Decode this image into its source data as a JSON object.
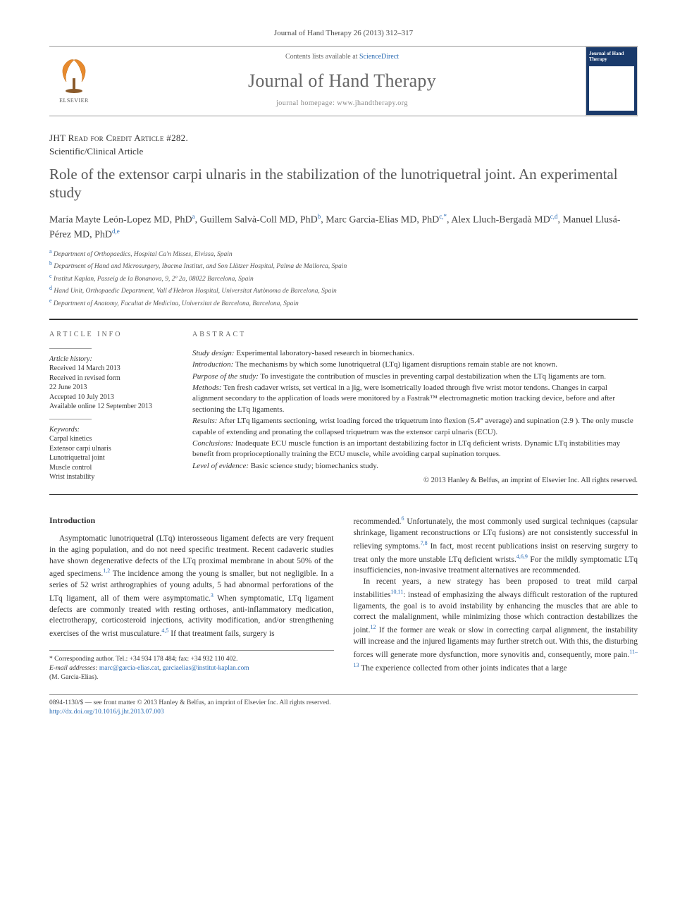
{
  "ref_citation": "Journal of Hand Therapy 26 (2013) 312–317",
  "header": {
    "publisher": "ELSEVIER",
    "contents_prefix": "Contents lists available at ",
    "contents_link": "ScienceDirect",
    "journal_name": "Journal of Hand Therapy",
    "homepage_prefix": "journal homepage: ",
    "homepage_url": "www.jhandtherapy.org",
    "cover_title": "Journal of Hand Therapy"
  },
  "article_type": "JHT Read for Credit Article #282.",
  "article_category": "Scientific/Clinical Article",
  "title": "Role of the extensor carpi ulnaris in the stabilization of the lunotriquetral joint. An experimental study",
  "authors_html": "María Mayte León-Lopez MD, PhD<sup>a</sup>, Guillem Salvà-Coll MD, PhD<sup>b</sup>, Marc Garcia-Elias MD, PhD<sup>c,*</sup>, Alex Lluch-Bergadà MD<sup>c,d</sup>, Manuel Llusá-Pérez MD, PhD<sup>d,e</sup>",
  "affiliations": [
    {
      "sup": "a",
      "text": "Department of Orthopaedics, Hospital Ca'n Misses, Eivissa, Spain"
    },
    {
      "sup": "b",
      "text": "Department of Hand and Microsurgery, Ibacma Institut, and Son Llàtzer Hospital, Palma de Mallorca, Spain"
    },
    {
      "sup": "c",
      "text": "Institut Kaplan, Passeig de la Bonanova, 9, 2º 2a, 08022 Barcelona, Spain"
    },
    {
      "sup": "d",
      "text": "Hand Unit, Orthopaedic Department, Vall d'Hebron Hospital, Universitat Autònoma de Barcelona, Spain"
    },
    {
      "sup": "e",
      "text": "Department of Anatomy, Facultat de Medicina, Universitat de Barcelona, Barcelona, Spain"
    }
  ],
  "info": {
    "heading": "ARTICLE INFO",
    "history_label": "Article history:",
    "history": [
      "Received 14 March 2013",
      "Received in revised form",
      "22 June 2013",
      "Accepted 10 July 2013",
      "Available online 12 September 2013"
    ],
    "keywords_label": "Keywords:",
    "keywords": [
      "Carpal kinetics",
      "Extensor carpi ulnaris",
      "Lunotriquetral joint",
      "Muscle control",
      "Wrist instability"
    ]
  },
  "abstract": {
    "heading": "ABSTRACT",
    "items": [
      {
        "label": "Study design:",
        "text": " Experimental laboratory-based research in biomechanics."
      },
      {
        "label": "Introduction:",
        "text": " The mechanisms by which some lunotriquetral (LTq) ligament disruptions remain stable are not known."
      },
      {
        "label": "Purpose of the study:",
        "text": " To investigate the contribution of muscles in preventing carpal destabilization when the LTq ligaments are torn."
      },
      {
        "label": "Methods:",
        "text": " Ten fresh cadaver wrists, set vertical in a jig, were isometrically loaded through five wrist motor tendons. Changes in carpal alignment secondary to the application of loads were monitored by a Fastrak™ electromagnetic motion tracking device, before and after sectioning the LTq ligaments."
      },
      {
        "label": "Results:",
        "text": " After LTq ligaments sectioning, wrist loading forced the triquetrum into flexion (5.4° average) and supination (2.9 ). The only muscle capable of extending and pronating the collapsed triquetrum was the extensor carpi ulnaris (ECU)."
      },
      {
        "label": "Conclusions:",
        "text": " Inadequate ECU muscle function is an important destabilizing factor in LTq deficient wrists. Dynamic LTq instabilities may benefit from proprioceptionally training the ECU muscle, while avoiding carpal supination torques."
      },
      {
        "label": "Level of evidence:",
        "text": " Basic science study; biomechanics study."
      }
    ],
    "copyright": "© 2013 Hanley & Belfus, an imprint of Elsevier Inc. All rights reserved."
  },
  "body": {
    "intro_heading": "Introduction",
    "p1": "Asymptomatic lunotriquetral (LTq) interosseous ligament defects are very frequent in the aging population, and do not need specific treatment. Recent cadaveric studies have shown degenerative defects of the LTq proximal membrane in about 50% of the aged specimens.<sup>1,2</sup> The incidence among the young is smaller, but not negligible. In a series of 52 wrist arthrographies of young adults, 5 had abnormal perforations of the LTq ligament, all of them were asymptomatic.<sup>3</sup> When symptomatic, LTq ligament defects are commonly treated with resting orthoses, anti-inflammatory medication, electrotherapy, corticosteroid injections, activity modification, and/or strengthening exercises of the wrist musculature.<sup>4,5</sup> If that treatment fails, surgery is",
    "p2": "recommended.<sup>6</sup> Unfortunately, the most commonly used surgical techniques (capsular shrinkage, ligament reconstructions or LTq fusions) are not consistently successful in relieving symptoms.<sup>7,8</sup> In fact, most recent publications insist on reserving surgery to treat only the more unstable LTq deficient wrists.<sup>4,6,9</sup> For the mildly symptomatic LTq insufficiencies, non-invasive treatment alternatives are recommended.",
    "p3": "In recent years, a new strategy has been proposed to treat mild carpal instabilities<sup>10,11</sup>: instead of emphasizing the always difficult restoration of the ruptured ligaments, the goal is to avoid instability by enhancing the muscles that are able to correct the malalignment, while minimizing those which contraction destabilizes the joint.<sup>12</sup> If the former are weak or slow in correcting carpal alignment, the instability will increase and the injured ligaments may further stretch out. With this, the disturbing forces will generate more dysfunction, more synovitis and, consequently, more pain.<sup>11–13</sup> The experience collected from other joints indicates that a large"
  },
  "footnote": {
    "corr_label": "* Corresponding author. Tel.: +34 934 178 484; fax: +34 932 110 402.",
    "email_label": "E-mail addresses:",
    "email1": "marc@garcia-elias.cat",
    "email2": "garciaelias@institut-kaplan.com",
    "author": "(M. Garcia-Elias)."
  },
  "bottom": {
    "line1": "0894-1130/$ — see front matter © 2013 Hanley & Belfus, an imprint of Elsevier Inc. All rights reserved.",
    "doi": "http://dx.doi.org/10.1016/j.jht.2013.07.003"
  },
  "colors": {
    "link": "#2a6bb3",
    "text": "#333333",
    "muted": "#666666",
    "rule": "#333333",
    "cover_bg": "#1a3a6b"
  }
}
